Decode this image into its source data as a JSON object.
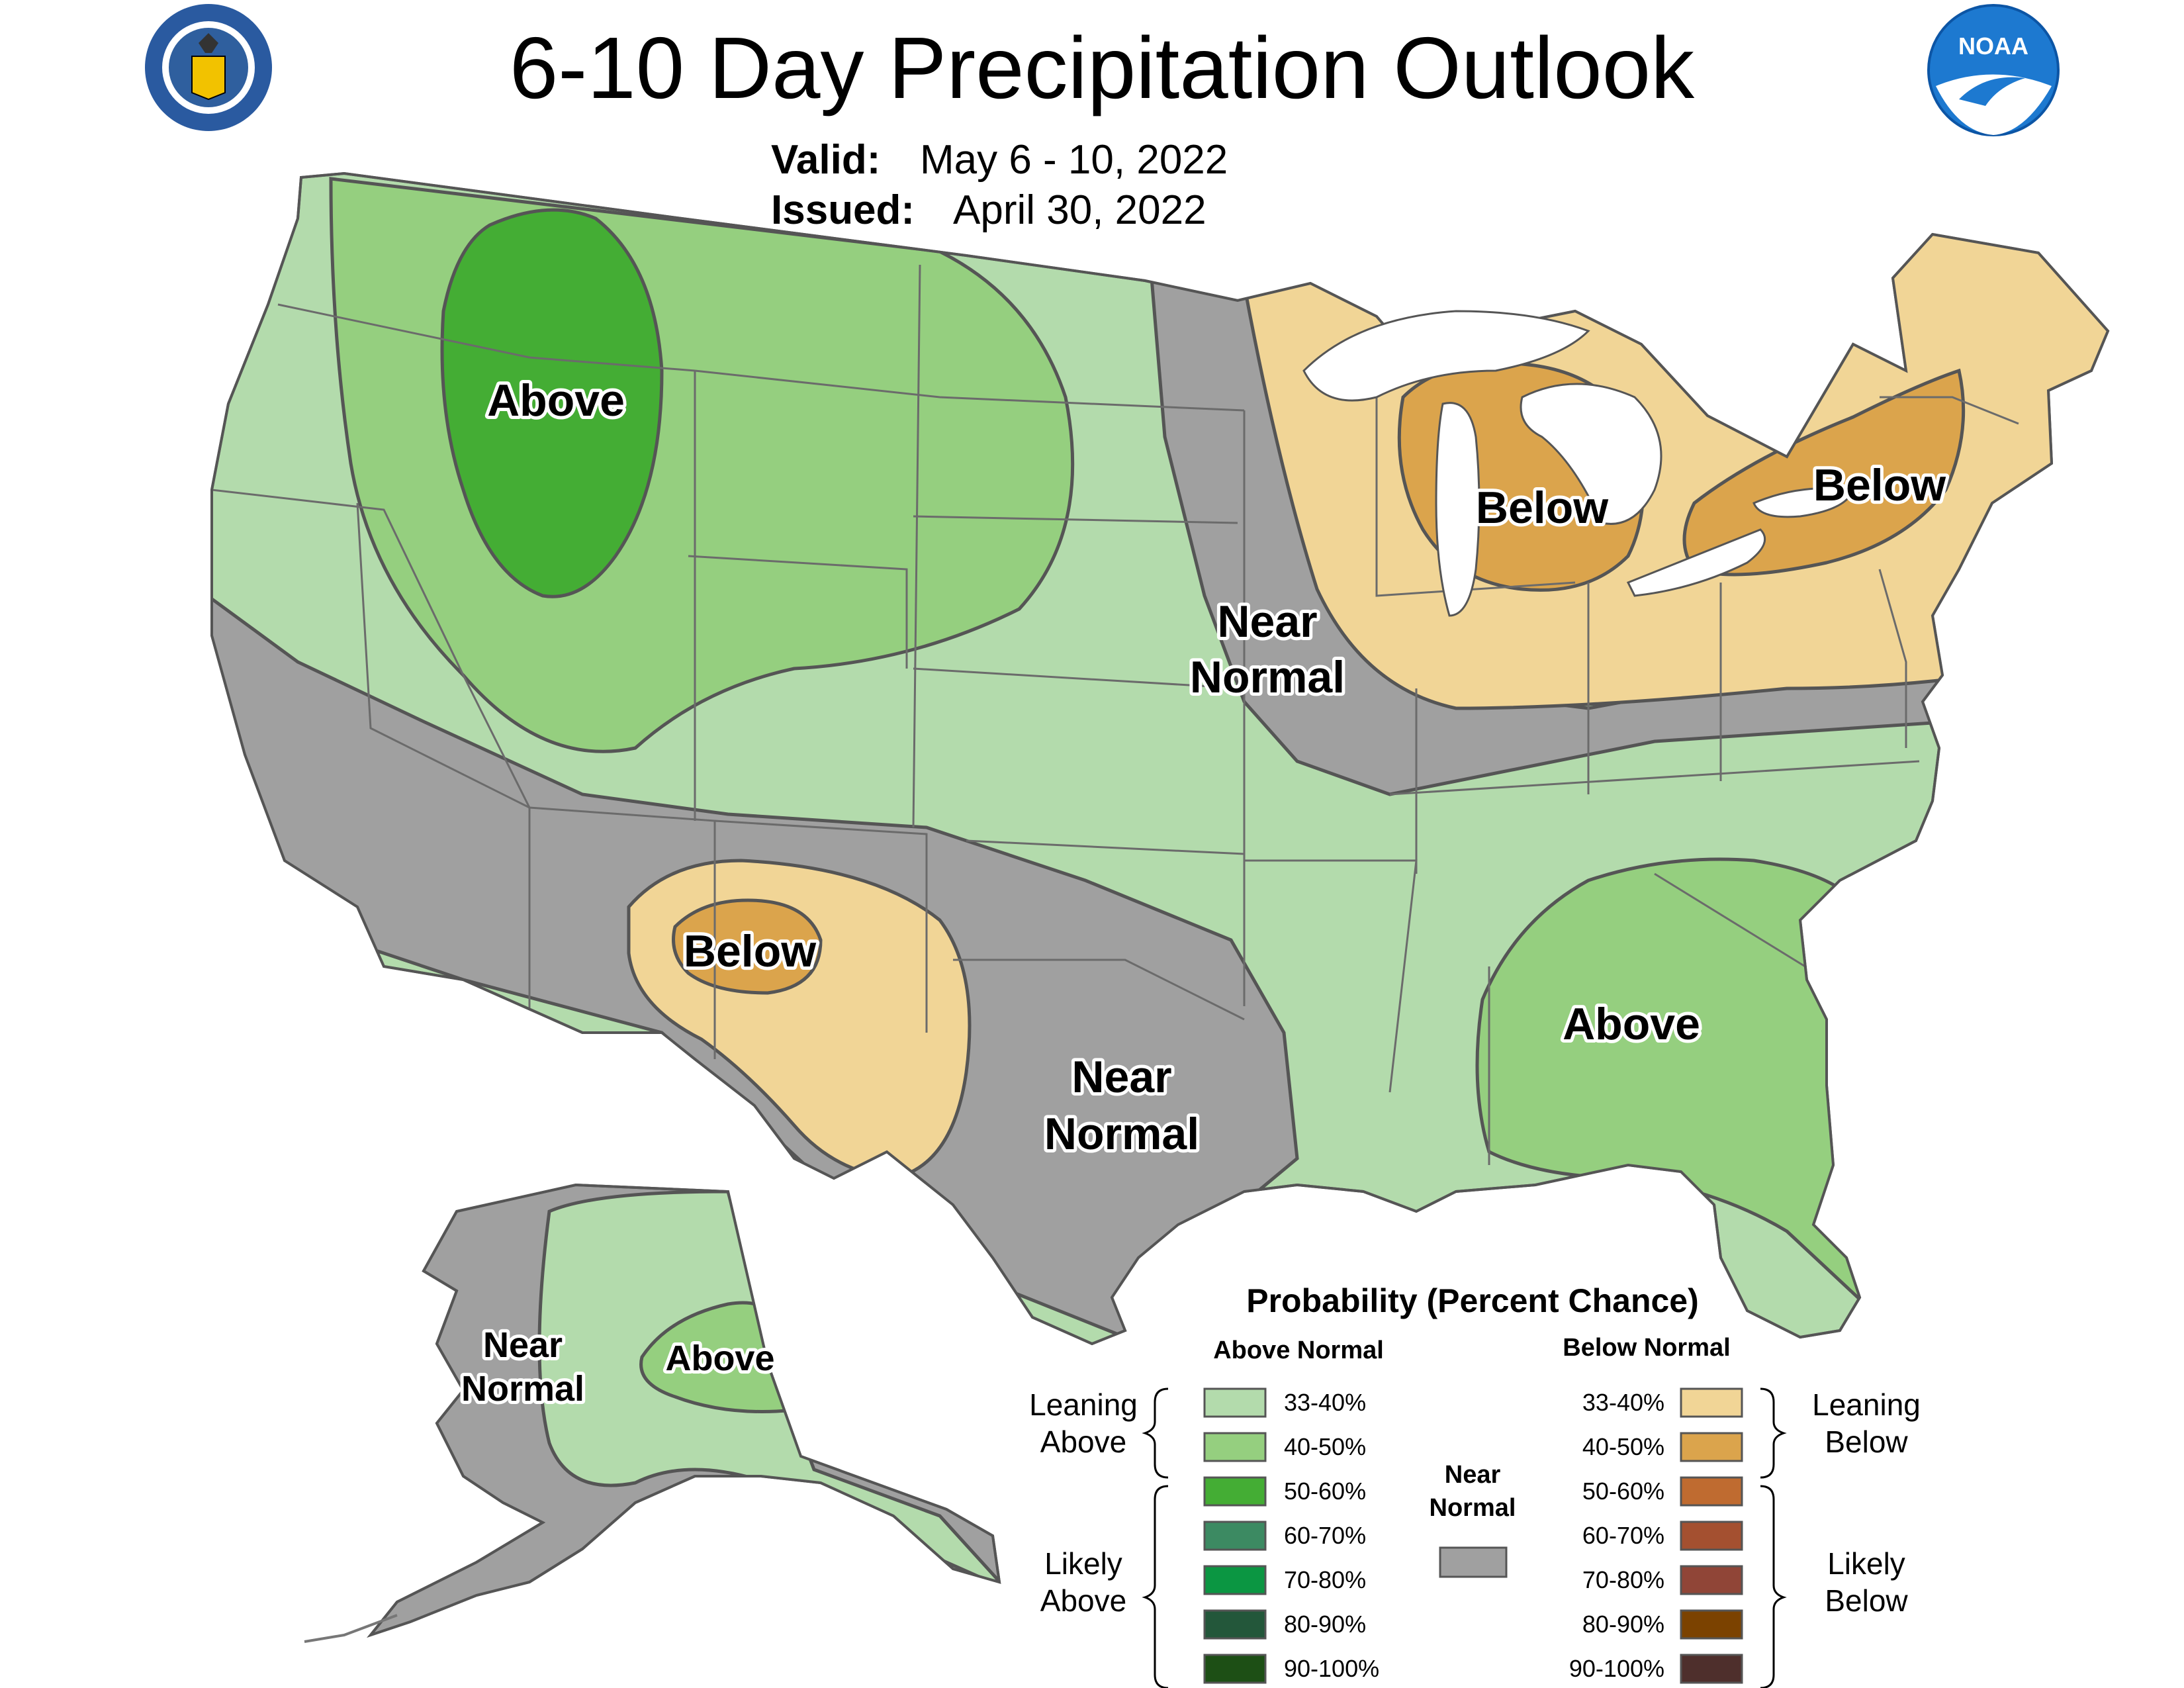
{
  "header": {
    "title": "6-10 Day Precipitation Outlook",
    "valid_label": "Valid:",
    "valid_value": "May 6 - 10, 2022",
    "issued_label": "Issued:",
    "issued_value": "April 30, 2022"
  },
  "logos": {
    "left": "department-of-commerce-seal",
    "right": "noaa-logo",
    "right_text": "NOAA"
  },
  "colors": {
    "lean_above_1": "#b3dbac",
    "lean_above_2": "#95cf7f",
    "likely_above_1": "#44ad34",
    "likely_above_2": "#3c8a62",
    "likely_above_3": "#0b9642",
    "likely_above_4": "#23573a",
    "likely_above_5": "#1d4f15",
    "near_normal": "#a0a0a0",
    "lean_below_1": "#f1d596",
    "lean_below_2": "#dba44c",
    "likely_below_1": "#bf6b30",
    "likely_below_2": "#a45030",
    "likely_below_3": "#904537",
    "likely_below_4": "#7b4200",
    "likely_below_5": "#4e2f2c"
  },
  "map_labels": {
    "nw_above": "Above",
    "lakes_below": "Below",
    "ne_below": "Below",
    "plains_near_1": "Near",
    "plains_near_2": "Normal",
    "sw_below": "Below",
    "tx_near_1": "Near",
    "tx_near_2": "Normal",
    "se_above": "Above",
    "ak_near_1": "Near",
    "ak_near_2": "Normal",
    "ak_above": "Above"
  },
  "legend": {
    "title": "Probability (Percent Chance)",
    "above_header": "Above Normal",
    "below_header": "Below Normal",
    "leaning_above_1": "Leaning",
    "leaning_above_2": "Above",
    "likely_above_1": "Likely",
    "likely_above_2": "Above",
    "leaning_below_1": "Leaning",
    "leaning_below_2": "Below",
    "likely_below_1": "Likely",
    "likely_below_2": "Below",
    "near_1": "Near",
    "near_2": "Normal",
    "above_ranges": [
      "33-40%",
      "40-50%",
      "50-60%",
      "60-70%",
      "70-80%",
      "80-90%",
      "90-100%"
    ],
    "below_ranges": [
      "33-40%",
      "40-50%",
      "50-60%",
      "60-70%",
      "70-80%",
      "80-90%",
      "90-100%"
    ]
  }
}
